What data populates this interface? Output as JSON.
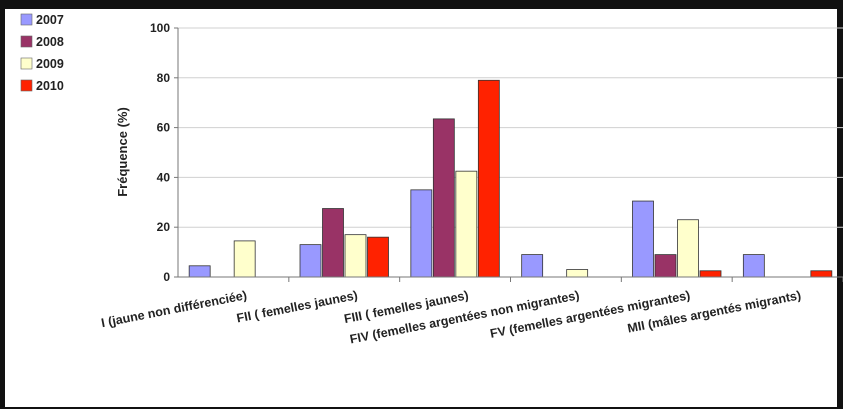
{
  "chart_data": {
    "type": "bar",
    "title": "",
    "xlabel": "",
    "ylabel": "Fréquence (%)",
    "ylim": [
      0,
      100
    ],
    "yticks": [
      0,
      20,
      40,
      60,
      80,
      100
    ],
    "grid": true,
    "legend_position": "top-left",
    "categories": [
      "I (jaune non différenciée)",
      "FII ( femelles jaunes)",
      "FIII ( femelles jaunes)",
      "FIV (femelles argentées non migrantes)",
      "FV (femelles argentées migrantes)",
      "MII (mâles argentés migrants)"
    ],
    "series": [
      {
        "name": "2007",
        "color": "#9999ff",
        "values": [
          4.5,
          13,
          35,
          9,
          30.5,
          9
        ]
      },
      {
        "name": "2008",
        "color": "#993366",
        "values": [
          0,
          27.5,
          63.5,
          0,
          9,
          0
        ]
      },
      {
        "name": "2009",
        "color": "#ffffcc",
        "values": [
          14.5,
          17,
          42.5,
          3,
          23,
          0
        ]
      },
      {
        "name": "2010",
        "color": "#ff2200",
        "values": [
          0,
          16,
          79,
          0,
          2.5,
          2.5
        ]
      }
    ]
  }
}
